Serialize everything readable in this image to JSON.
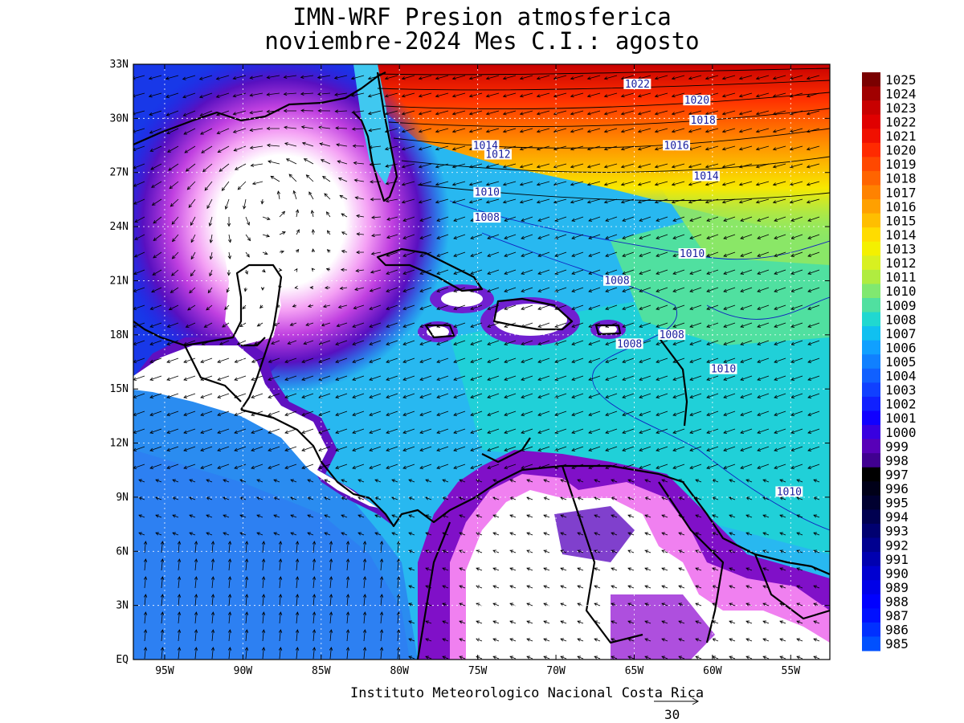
{
  "title": {
    "line1": "IMN-WRF  Presion atmosferica",
    "line2": "noviembre-2024 Mes C.I.: agosto"
  },
  "axes": {
    "lat_labels": [
      "33N",
      "30N",
      "27N",
      "24N",
      "21N",
      "18N",
      "15N",
      "12N",
      "9N",
      "6N",
      "3N",
      "EQ"
    ],
    "lon_labels": [
      "95W",
      "90W",
      "85W",
      "80W",
      "75W",
      "70W",
      "65W",
      "60W",
      "55W"
    ]
  },
  "colorbar": {
    "labels": [
      "1025",
      "1024",
      "1023",
      "1022",
      "1021",
      "1020",
      "1019",
      "1018",
      "1017",
      "1016",
      "1015",
      "1014",
      "1013",
      "1012",
      "1011",
      "1010",
      "1009",
      "1008",
      "1007",
      "1006",
      "1005",
      "1004",
      "1003",
      "1002",
      "1001",
      "1000",
      "999",
      "998",
      "997",
      "996",
      "995",
      "994",
      "993",
      "992",
      "991",
      "990",
      "989",
      "988",
      "987",
      "986",
      "985"
    ],
    "colors": [
      "#7a0000",
      "#a00000",
      "#c80000",
      "#e00000",
      "#f01000",
      "#ff2a00",
      "#ff4800",
      "#ff6400",
      "#ff8200",
      "#ffa000",
      "#ffbe00",
      "#ffdc00",
      "#f4f000",
      "#d8f020",
      "#b0ec40",
      "#80e870",
      "#50e0a0",
      "#20d8d0",
      "#10c0f0",
      "#10a0ff",
      "#1080ff",
      "#1060ff",
      "#1040ff",
      "#1020ff",
      "#1000ff",
      "#3800e0",
      "#5800b8",
      "#400090",
      "#000000",
      "#000018",
      "#000030",
      "#000050",
      "#000070",
      "#000090",
      "#0000b0",
      "#0000d0",
      "#0000e8",
      "#0000ff",
      "#0010ff",
      "#0030ff",
      "#0050ff"
    ]
  },
  "contour_labels": [
    {
      "text": "1022",
      "lon": -64.8,
      "lat": 31.8
    },
    {
      "text": "1020",
      "lon": -61.0,
      "lat": 30.9
    },
    {
      "text": "1018",
      "lon": -60.6,
      "lat": 29.8
    },
    {
      "text": "1016",
      "lon": -62.3,
      "lat": 28.4
    },
    {
      "text": "1014",
      "lon": -60.4,
      "lat": 26.7
    },
    {
      "text": "1014",
      "lon": -74.5,
      "lat": 28.4
    },
    {
      "text": "1012",
      "lon": -73.7,
      "lat": 27.9
    },
    {
      "text": "1010",
      "lon": -74.4,
      "lat": 25.8
    },
    {
      "text": "1008",
      "lon": -74.4,
      "lat": 24.4
    },
    {
      "text": "1010",
      "lon": -61.3,
      "lat": 22.4
    },
    {
      "text": "1008",
      "lon": -66.1,
      "lat": 20.9
    },
    {
      "text": "1008",
      "lon": -62.6,
      "lat": 17.9
    },
    {
      "text": "1008",
      "lon": -65.3,
      "lat": 17.4
    },
    {
      "text": "1010",
      "lon": -59.3,
      "lat": 16.0
    },
    {
      "text": "1010",
      "lon": -55.1,
      "lat": 9.2
    }
  ],
  "vector_scale": "30",
  "credit": "Instituto Meteorologico Nacional Costa Rica"
}
